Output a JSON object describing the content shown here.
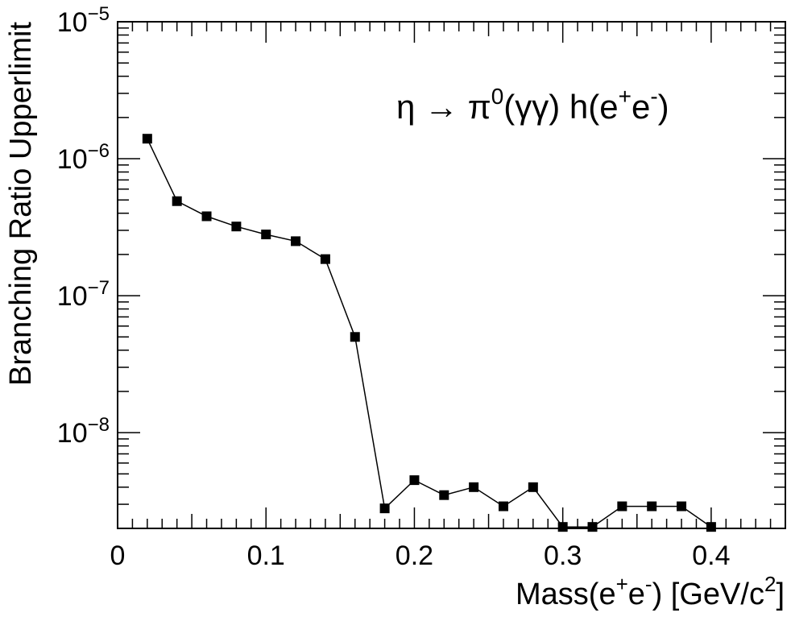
{
  "chart_data": {
    "type": "scatter",
    "title": "",
    "xlabel": "Mass(e⁺e⁻) [GeV/c²]",
    "xlabel_parts": {
      "base": "Mass(e",
      "sup1": "+",
      "mid": "e",
      "sup2": "-",
      "tail": ") [GeV/c",
      "sup3": "2",
      "end": "]"
    },
    "ylabel": "Branching Ratio Upperlimit",
    "annotation": "η → π⁰(γγ) h(e⁺e⁻)",
    "annotation_parts": {
      "a": "η → π",
      "b": "0",
      "c": "(γγ) h(e",
      "d": "+",
      "e": "e",
      "f": "-",
      "g": ")"
    },
    "x_range": [
      0,
      0.45
    ],
    "y_range": [
      2e-09,
      1e-05
    ],
    "y_scale": "log",
    "x_ticks": [
      "0",
      "0.1",
      "0.2",
      "0.3",
      "0.4"
    ],
    "y_ticks": [
      {
        "base": "10",
        "exp": "−8"
      },
      {
        "base": "10",
        "exp": "−7"
      },
      {
        "base": "10",
        "exp": "−6"
      },
      {
        "base": "10",
        "exp": "−5"
      }
    ],
    "grid": false,
    "marker": "square",
    "series": [
      {
        "line": true,
        "x": [
          0.02,
          0.04,
          0.06,
          0.08,
          0.1,
          0.12,
          0.14,
          0.16,
          0.18,
          0.2,
          0.22,
          0.24,
          0.26,
          0.28,
          0.3,
          0.32,
          0.34,
          0.36,
          0.38,
          0.4
        ],
        "y": [
          1.4e-06,
          4.9e-07,
          3.8e-07,
          3.2e-07,
          2.8e-07,
          2.5e-07,
          1.85e-07,
          5e-08,
          2.8e-09,
          4.5e-09,
          3.5e-09,
          4e-09,
          2.9e-09,
          4e-09,
          2.05e-09,
          2.05e-09,
          2.9e-09,
          2.9e-09,
          2.9e-09,
          2.05e-09
        ]
      }
    ],
    "colors": {
      "marks": "#000000",
      "frame": "#000000",
      "background": "#ffffff"
    }
  }
}
